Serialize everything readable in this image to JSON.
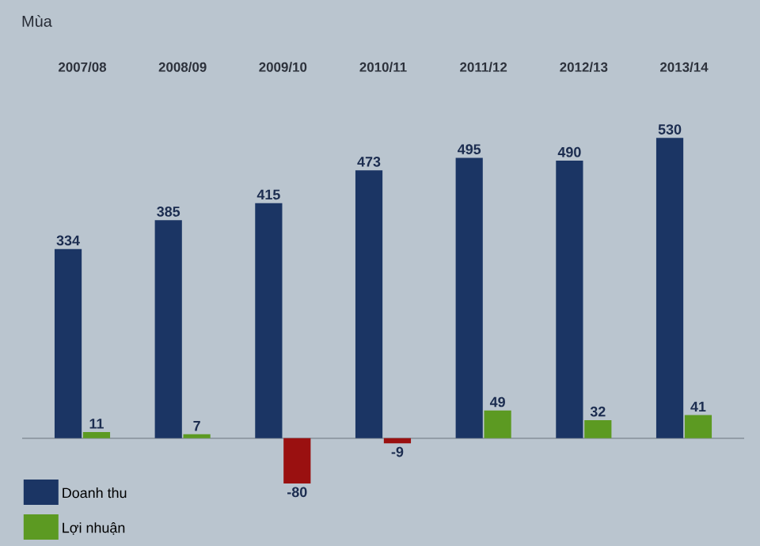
{
  "chart_data": {
    "type": "bar",
    "title": "Mùa",
    "categories": [
      "2007/08",
      "2008/09",
      "2009/10",
      "2010/11",
      "2011/12",
      "2012/13",
      "2013/14"
    ],
    "series": [
      {
        "name": "Doanh thu",
        "color": "#1b3564",
        "values": [
          334,
          385,
          415,
          473,
          495,
          490,
          530
        ]
      },
      {
        "name": "Lợi nhuận",
        "color": "#5c9a22",
        "colors": [
          "#5c9a22",
          "#5c9a22",
          "#9a1010",
          "#9a1010",
          "#5c9a22",
          "#5c9a22",
          "#5c9a22"
        ],
        "values": [
          11,
          7,
          -80,
          -9,
          49,
          32,
          41
        ]
      }
    ],
    "data_labels": true,
    "legend": "bottom left",
    "tick_labels": "x"
  }
}
